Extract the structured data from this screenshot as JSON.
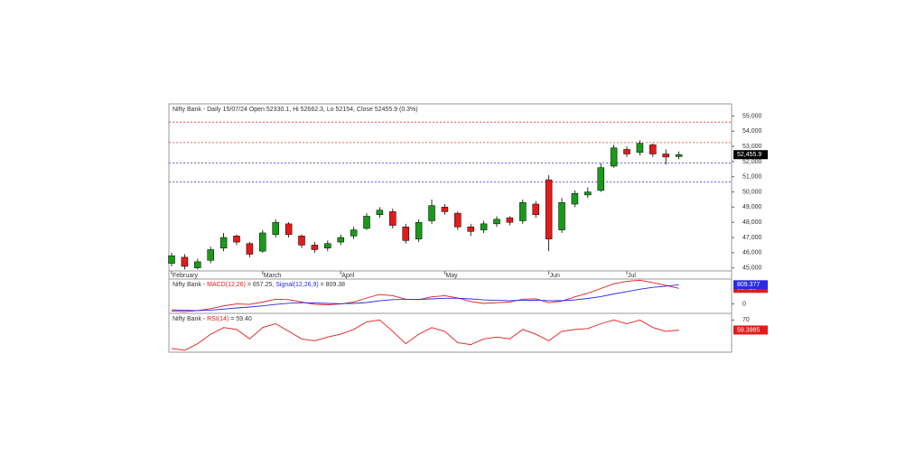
{
  "chart_data": [
    {
      "type": "candlestick",
      "title": "Nifty Bank - Daily 15/07/24 Open 52330.1, Hi 52662.3, Lo 52154, Close 52455.9 (0.3%)",
      "categories": [
        "February",
        null,
        null,
        null,
        null,
        null,
        null,
        "March",
        null,
        null,
        null,
        null,
        null,
        "April",
        null,
        null,
        null,
        null,
        null,
        null,
        null,
        "May",
        null,
        null,
        null,
        null,
        null,
        null,
        null,
        "Jun",
        null,
        null,
        null,
        null,
        null,
        "Jul",
        null,
        null,
        null,
        null
      ],
      "open": [
        45300,
        45700,
        45000,
        45500,
        46300,
        47100,
        46600,
        46100,
        47200,
        47900,
        47100,
        46500,
        46300,
        46700,
        47100,
        47600,
        48500,
        48700,
        47700,
        46900,
        48100,
        49000,
        48600,
        47700,
        47500,
        47900,
        48300,
        48100,
        49200,
        50800,
        47500,
        49200,
        49800,
        50100,
        51700,
        52800,
        52600,
        53100,
        52500,
        52330.1
      ],
      "high": [
        46000,
        45900,
        45600,
        46400,
        47300,
        47200,
        46700,
        47500,
        48200,
        48000,
        47200,
        46700,
        46800,
        47200,
        47700,
        48600,
        49000,
        48900,
        47900,
        48200,
        49500,
        49200,
        48700,
        47900,
        48100,
        48400,
        48400,
        49500,
        49400,
        51100,
        49600,
        50100,
        50300,
        51900,
        53100,
        53000,
        53400,
        53200,
        52800,
        52662.3
      ],
      "low": [
        45100,
        44900,
        44900,
        45300,
        46100,
        46500,
        45700,
        46000,
        47000,
        47000,
        46300,
        46000,
        46100,
        46500,
        46900,
        47500,
        48300,
        47600,
        46600,
        46700,
        47900,
        48500,
        47500,
        47100,
        47300,
        47700,
        47800,
        47900,
        48300,
        46100,
        47300,
        49000,
        49600,
        50000,
        51600,
        52300,
        52400,
        52300,
        51800,
        52154
      ],
      "close": [
        45800,
        45100,
        45400,
        46200,
        47000,
        46700,
        45900,
        47300,
        48000,
        47200,
        46500,
        46200,
        46600,
        47000,
        47500,
        48400,
        48800,
        47800,
        46800,
        48000,
        49100,
        48700,
        47700,
        47400,
        47900,
        48200,
        48000,
        49300,
        48500,
        46900,
        49300,
        49900,
        50000,
        51600,
        52900,
        52500,
        53200,
        52500,
        52300,
        52455.9
      ],
      "last_label": "52,455.9",
      "up_color": "#1a9a1a",
      "down_color": "#e31b1b",
      "levels": [
        {
          "value": 54600,
          "color": "#e33333"
        },
        {
          "value": 53250,
          "color": "#e33333"
        },
        {
          "value": 51900,
          "color": "#3333e3"
        },
        {
          "value": 50650,
          "color": "#3333e3"
        }
      ],
      "ylim": [
        44800,
        55800
      ],
      "yticks": [
        {
          "value": 45000,
          "label": "45,000"
        },
        {
          "value": 46000,
          "label": "46,000"
        },
        {
          "value": 47000,
          "label": "47,000"
        },
        {
          "value": 48000,
          "label": "48,000"
        },
        {
          "value": 49000,
          "label": "49,000"
        },
        {
          "value": 50000,
          "label": "50,000"
        },
        {
          "value": 51000,
          "label": "51,000"
        },
        {
          "value": 52000,
          "label": "52,000"
        },
        {
          "value": 53000,
          "label": "53,000"
        },
        {
          "value": 54000,
          "label": "54,000"
        },
        {
          "value": 55000,
          "label": "55,000"
        }
      ]
    },
    {
      "type": "line",
      "title_parts": [
        {
          "text": "Nifty Bank - ",
          "color": "#333333"
        },
        {
          "text": "MACD(12,26)",
          "color": "#e31b1b"
        },
        {
          "text": " = 657.25, ",
          "color": "#333333"
        },
        {
          "text": "Signal(12,26,9)",
          "color": "#2a2ae0"
        },
        {
          "text": " = 809.38",
          "color": "#333333"
        }
      ],
      "series": [
        {
          "name": "MACD(12,26)",
          "color": "#e31b1b",
          "last_label": "657.25",
          "values": [
            -300,
            -320,
            -280,
            -200,
            -80,
            0,
            -20,
            80,
            200,
            180,
            80,
            -20,
            -40,
            0,
            80,
            250,
            400,
            350,
            200,
            180,
            300,
            350,
            250,
            100,
            20,
            50,
            80,
            200,
            220,
            50,
            120,
            300,
            450,
            650,
            850,
            950,
            1000,
            900,
            780,
            657.25
          ]
        },
        {
          "name": "Signal(12,26,9)",
          "color": "#2a2ae0",
          "last_label": "809.377",
          "values": [
            -250,
            -270,
            -280,
            -260,
            -220,
            -170,
            -130,
            -80,
            -20,
            30,
            50,
            40,
            20,
            10,
            20,
            60,
            130,
            180,
            190,
            190,
            210,
            240,
            240,
            210,
            170,
            150,
            140,
            150,
            160,
            140,
            135,
            170,
            230,
            310,
            420,
            520,
            620,
            700,
            750,
            809.38
          ]
        }
      ],
      "ylim": [
        -360,
        1050
      ],
      "yticks": [
        0
      ]
    },
    {
      "type": "line",
      "title_parts": [
        {
          "text": "Nifty Bank - ",
          "color": "#333333"
        },
        {
          "text": "RSI(14)",
          "color": "#e31b1b"
        },
        {
          "text": " = 59.40",
          "color": "#333333"
        }
      ],
      "series": [
        {
          "name": "RSI(14)",
          "color": "#e31b1b",
          "last_label": "59.3985",
          "values": [
            40,
            38,
            45,
            55,
            62,
            60,
            50,
            62,
            66,
            58,
            50,
            48,
            52,
            55,
            60,
            68,
            70,
            58,
            45,
            55,
            62,
            58,
            46,
            44,
            50,
            52,
            50,
            60,
            55,
            48,
            58,
            60,
            61,
            66,
            70,
            66,
            70,
            62,
            58,
            59.4
          ]
        }
      ],
      "ylim": [
        36,
        77
      ],
      "yticks": [
        70
      ]
    }
  ]
}
